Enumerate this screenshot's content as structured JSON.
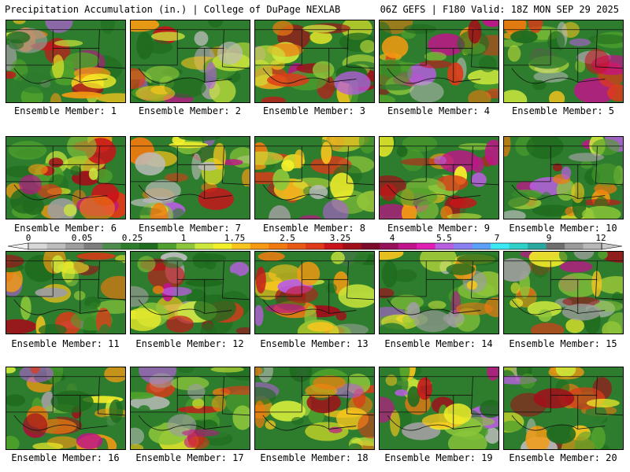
{
  "header": {
    "title": "Precipitation Accumulation (in.) | College of DuPage NEXLAB",
    "run_info": "06Z GEFS | F180 Valid: 18Z MON SEP 29 2025"
  },
  "colorbar": {
    "tick_labels": [
      "0",
      "0.05",
      "0.25",
      "1",
      "1.75",
      "2.5",
      "3.25",
      "4",
      "5.5",
      "7",
      "9",
      "12"
    ],
    "colors": [
      "#d8d8d8",
      "#bdbdbd",
      "#9e9e9e",
      "#7d7d7d",
      "#4c8c4c",
      "#2e7d2e",
      "#1f6b1f",
      "#4fa02c",
      "#8cc63a",
      "#cde83c",
      "#f3ef2a",
      "#f7c51e",
      "#f59a12",
      "#f07a10",
      "#e85a14",
      "#de3a18",
      "#c8141a",
      "#a0101a",
      "#7a0a28",
      "#96105a",
      "#c0148a",
      "#e01eb4",
      "#b85ee0",
      "#8a7ef0",
      "#5aa0f8",
      "#3ce8f4",
      "#2ed0c8",
      "#2aa8a0",
      "#6e6e6e",
      "#9a9a9a",
      "#b8b8b8"
    ]
  },
  "members": [
    {
      "caption": "Ensemble Member: 1"
    },
    {
      "caption": "Ensemble Member: 2"
    },
    {
      "caption": "Ensemble Member: 3"
    },
    {
      "caption": "Ensemble Member: 4"
    },
    {
      "caption": "Ensemble Member: 5"
    },
    {
      "caption": "Ensemble Member: 6"
    },
    {
      "caption": "Ensemble Member: 7"
    },
    {
      "caption": "Ensemble Member: 8"
    },
    {
      "caption": "Ensemble Member: 9"
    },
    {
      "caption": "Ensemble Member: 10"
    },
    {
      "caption": "Ensemble Member: 11"
    },
    {
      "caption": "Ensemble Member: 12"
    },
    {
      "caption": "Ensemble Member: 13"
    },
    {
      "caption": "Ensemble Member: 14"
    },
    {
      "caption": "Ensemble Member: 15"
    },
    {
      "caption": "Ensemble Member: 16"
    },
    {
      "caption": "Ensemble Member: 17"
    },
    {
      "caption": "Ensemble Member: 18"
    },
    {
      "caption": "Ensemble Member: 19"
    },
    {
      "caption": "Ensemble Member: 20"
    }
  ]
}
